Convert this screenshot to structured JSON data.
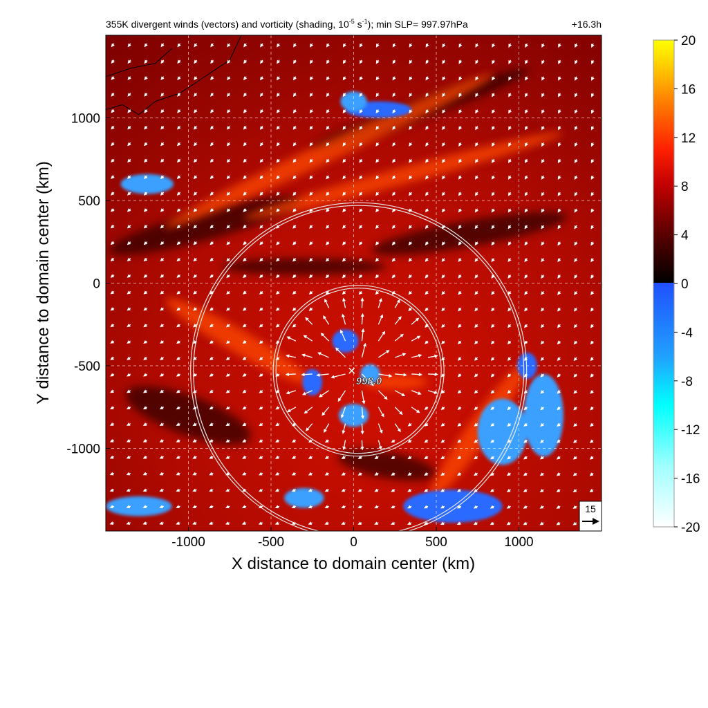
{
  "figure": {
    "title_main": "355K divergent winds (vectors) and vorticity (shading, 10",
    "title_sup": "-5",
    "title_mid": " s",
    "title_sup2": "-1",
    "title_end": "); min SLP= 997.97hPa",
    "time_label": "+16.3h",
    "center_marker": "×",
    "center_label": "998.0",
    "ref_vector_value": "15"
  },
  "chart_data": {
    "type": "heatmap",
    "xlabel": "X distance to domain center (km)",
    "ylabel": "Y distance to domain center (km)",
    "xlim": [
      -1500,
      1500
    ],
    "ylim": [
      -1500,
      1500
    ],
    "x_ticks": [
      -1000,
      -500,
      0,
      500,
      1000
    ],
    "y_ticks": [
      -1000,
      -500,
      0,
      500,
      1000
    ],
    "x_tick_labels": [
      "-1000",
      "-500",
      "0",
      "500",
      "1000"
    ],
    "y_tick_labels": [
      "-1000",
      "-500",
      "0",
      "500",
      "1000"
    ],
    "grid": true,
    "center": {
      "x": 30,
      "y": -530,
      "min_slp_hpa": 997.97
    },
    "range_rings_km": [
      500,
      1000
    ],
    "colorbar": {
      "ticks": [
        20,
        16,
        12,
        8,
        4,
        0,
        -4,
        -8,
        -12,
        -16,
        -20
      ],
      "tick_labels": [
        "20",
        "16",
        "12",
        "8",
        "4",
        "0",
        "-4",
        "-8",
        "-12",
        "-16",
        "-20"
      ],
      "range": [
        -20,
        20
      ],
      "colors_positive": [
        "#000000",
        "#5a0000",
        "#c00000",
        "#ff2000",
        "#ff8000",
        "#ffd000",
        "#ffff00"
      ],
      "colors_negative": [
        "#2050ff",
        "#20a0ff",
        "#00ffff",
        "#a0ffff",
        "#ffffff"
      ]
    },
    "negative_vorticity_regions": [
      {
        "x": 150,
        "y": 1050,
        "rx": 200,
        "ry": 50
      },
      {
        "x": -1250,
        "y": 600,
        "rx": 160,
        "ry": 60
      },
      {
        "x": -1300,
        "y": -1350,
        "rx": 200,
        "ry": 60
      },
      {
        "x": -50,
        "y": -350,
        "rx": 80,
        "ry": 70
      },
      {
        "x": 100,
        "y": -550,
        "rx": 60,
        "ry": 60
      },
      {
        "x": 0,
        "y": -800,
        "rx": 90,
        "ry": 70
      },
      {
        "x": -250,
        "y": -600,
        "rx": 60,
        "ry": 80
      },
      {
        "x": 900,
        "y": -900,
        "rx": 150,
        "ry": 200
      },
      {
        "x": 1150,
        "y": -800,
        "rx": 120,
        "ry": 250
      },
      {
        "x": 600,
        "y": -1350,
        "rx": 300,
        "ry": 100
      },
      {
        "x": 0,
        "y": 1100,
        "rx": 80,
        "ry": 60
      },
      {
        "x": -300,
        "y": -1300,
        "rx": 120,
        "ry": 60
      },
      {
        "x": 1050,
        "y": -500,
        "rx": 60,
        "ry": 80
      }
    ],
    "strong_vorticity_bands": [
      {
        "x": -150,
        "y": 800,
        "rx": 1100,
        "ry": 60,
        "rot": -25
      },
      {
        "x": 300,
        "y": 650,
        "rx": 1000,
        "ry": 50,
        "rot": -15
      },
      {
        "x": -700,
        "y": -350,
        "rx": 500,
        "ry": 70,
        "rot": 30
      },
      {
        "x": 750,
        "y": -900,
        "rx": 500,
        "ry": 70,
        "rot": -55
      },
      {
        "x": 250,
        "y": -600,
        "rx": 200,
        "ry": 40,
        "rot": 0
      }
    ],
    "vector_grid_spacing_km": 100
  }
}
